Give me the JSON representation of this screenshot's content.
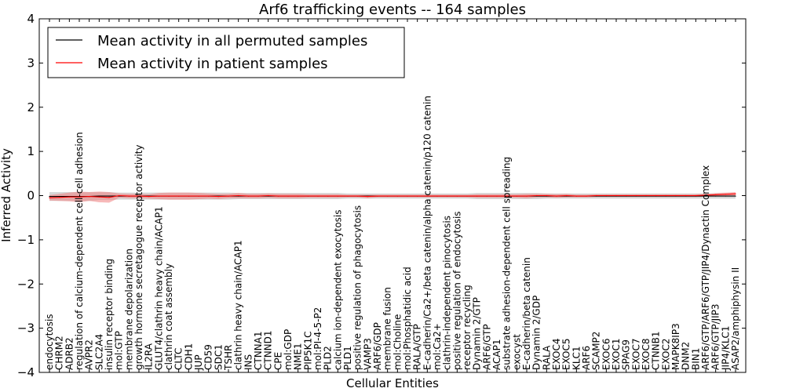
{
  "chart_data": {
    "type": "line",
    "title": "Arf6 trafficking events -- 164 samples",
    "xlabel": "Cellular Entities",
    "ylabel": "Inferred Activity",
    "ylim": [
      -4,
      4
    ],
    "yticks": [
      "−4",
      "−3",
      "−2",
      "−1",
      "0",
      "1",
      "2",
      "3",
      "4"
    ],
    "grid": false,
    "legend_position": "top-left",
    "categories": [
      "endocytosis",
      "CHRM2",
      "ADRB2",
      "regulation of calcium-dependent cell-cell adhesion",
      "AVPR2",
      "SLC2A4",
      "insulin receptor binding",
      "mol:GTP",
      "membrane depolarization",
      "growth hormone secretagogue receptor activity",
      "IL2RA",
      "GLUT4/clathrin heavy chain/ACAP1",
      "clathrin coat assembly",
      "CLTC",
      "CDH1",
      "JUP",
      "CD59",
      "SDC1",
      "TSHR",
      "clathrin heavy chain/ACAP1",
      "INS",
      "CTNNA1",
      "CTNND1",
      "CPE",
      "mol:GDP",
      "NME1",
      "PIP5K1C",
      "mol:PI-4-5-P2",
      "PLD2",
      "calcium ion-dependent exocytosis",
      "PLD1",
      "positive regulation of phagocytosis",
      "VAMP3",
      "ARF6/GDP",
      "membrane fusion",
      "mol:Choline",
      "mol:Phosphatidic acid",
      "RALA/GTP",
      "E-cadherin/Ca2+/beta catenin/alpha catenin/p120 catenin",
      "mol:Ca2+",
      "clathrin-independent pinocytosis",
      "positive regulation of endocytosis",
      "receptor recycling",
      "Dynamin 2/GTP",
      "ARF6/GTP",
      "ACAP1",
      "substrate adhesion-dependent cell spreading",
      "exocyst",
      "E-cadherin/beta catenin",
      "Dynamin 2/GDP",
      "RALA",
      "EXOC4",
      "EXOC5",
      "KLC1",
      "ARF6",
      "SCAMP2",
      "EXOC6",
      "EXOC1",
      "SPAG9",
      "EXOC7",
      "EXOC8",
      "CTNNB1",
      "EXOC2",
      "MAPK8IP3",
      "DNM2",
      "BIN1",
      "ARF6/GTP/ARF6/GTP/JIP4/Dynactin Complex",
      "ARF6/GTP/JIP3",
      "JIP4/KLC1",
      "ASAP2/amphiphysin II"
    ],
    "series": [
      {
        "name": "Mean activity in all permuted samples",
        "color": "#000000",
        "band_color": "#b0b0b0",
        "values": [
          -0.02,
          -0.02,
          -0.02,
          -0.02,
          -0.02,
          -0.01,
          -0.01,
          -0.01,
          -0.01,
          -0.01,
          -0.01,
          -0.01,
          -0.01,
          -0.01,
          -0.01,
          -0.01,
          -0.01,
          -0.01,
          -0.01,
          -0.01,
          -0.01,
          -0.01,
          -0.01,
          -0.01,
          -0.01,
          -0.01,
          -0.01,
          -0.01,
          -0.01,
          -0.01,
          -0.01,
          -0.01,
          -0.01,
          -0.01,
          -0.01,
          -0.01,
          -0.01,
          -0.01,
          -0.01,
          -0.01,
          -0.01,
          -0.01,
          -0.01,
          -0.01,
          -0.01,
          -0.01,
          -0.01,
          -0.01,
          -0.01,
          -0.01,
          -0.01,
          -0.01,
          -0.01,
          -0.01,
          -0.01,
          -0.01,
          -0.01,
          -0.01,
          -0.01,
          -0.01,
          -0.01,
          -0.01,
          -0.01,
          -0.01,
          -0.01,
          -0.01,
          -0.01,
          -0.01,
          -0.01,
          -0.01
        ],
        "spread": [
          0.1,
          0.1,
          0.1,
          0.1,
          0.1,
          0.09,
          0.09,
          0.08,
          0.08,
          0.08,
          0.08,
          0.08,
          0.08,
          0.08,
          0.08,
          0.08,
          0.08,
          0.08,
          0.08,
          0.07,
          0.07,
          0.07,
          0.07,
          0.07,
          0.07,
          0.07,
          0.07,
          0.07,
          0.07,
          0.07,
          0.06,
          0.06,
          0.06,
          0.06,
          0.06,
          0.06,
          0.06,
          0.06,
          0.06,
          0.06,
          0.06,
          0.06,
          0.06,
          0.07,
          0.07,
          0.07,
          0.07,
          0.07,
          0.07,
          0.07,
          0.06,
          0.06,
          0.06,
          0.06,
          0.06,
          0.06,
          0.06,
          0.06,
          0.06,
          0.06,
          0.06,
          0.06,
          0.06,
          0.06,
          0.06,
          0.06,
          0.06,
          0.06,
          0.06,
          0.06
        ]
      },
      {
        "name": "Mean activity in patient samples",
        "color": "#ff0000",
        "band_color": "#f08080",
        "values": [
          -0.05,
          -0.04,
          -0.03,
          -0.03,
          -0.02,
          -0.03,
          -0.04,
          0.0,
          -0.01,
          -0.01,
          -0.02,
          -0.01,
          -0.01,
          -0.01,
          -0.01,
          -0.01,
          -0.01,
          -0.02,
          -0.01,
          0.0,
          -0.01,
          -0.01,
          0.0,
          -0.01,
          -0.01,
          -0.01,
          -0.01,
          -0.01,
          -0.01,
          -0.01,
          -0.01,
          -0.01,
          -0.02,
          -0.01,
          -0.01,
          -0.01,
          -0.01,
          -0.01,
          -0.01,
          -0.01,
          -0.01,
          -0.01,
          -0.01,
          -0.01,
          -0.01,
          -0.01,
          -0.01,
          -0.01,
          -0.01,
          0.0,
          0.0,
          -0.01,
          0.0,
          -0.01,
          -0.01,
          0.0,
          0.0,
          0.0,
          0.0,
          0.0,
          0.0,
          0.0,
          0.0,
          0.0,
          0.0,
          0.0,
          0.01,
          0.02,
          0.03,
          0.04
        ],
        "spread": [
          0.06,
          0.08,
          0.1,
          0.12,
          0.1,
          0.12,
          0.12,
          0.05,
          0.05,
          0.05,
          0.05,
          0.07,
          0.08,
          0.08,
          0.08,
          0.07,
          0.06,
          0.06,
          0.05,
          0.06,
          0.05,
          0.05,
          0.05,
          0.05,
          0.05,
          0.05,
          0.04,
          0.04,
          0.04,
          0.04,
          0.03,
          0.03,
          0.04,
          0.03,
          0.03,
          0.03,
          0.03,
          0.03,
          0.03,
          0.03,
          0.03,
          0.03,
          0.03,
          0.04,
          0.04,
          0.04,
          0.04,
          0.04,
          0.05,
          0.04,
          0.04,
          0.04,
          0.04,
          0.03,
          0.03,
          0.03,
          0.03,
          0.03,
          0.03,
          0.03,
          0.03,
          0.03,
          0.03,
          0.03,
          0.03,
          0.03,
          0.03,
          0.04,
          0.04,
          0.04
        ]
      }
    ]
  }
}
